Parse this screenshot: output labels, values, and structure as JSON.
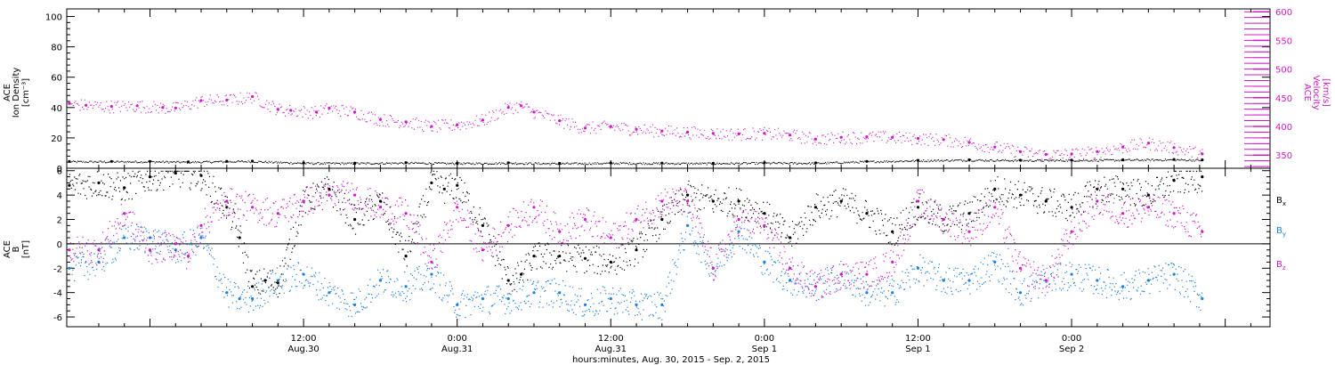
{
  "footer": {
    "time_axis_label": "hours:minutes, Aug. 30, 2015 - Sep. 2, 2015"
  },
  "chart_data": [
    {
      "type": "scatter",
      "panel": "top",
      "ylabel": [
        "ACE",
        "Ion Density",
        "[cm⁻³]"
      ],
      "ylabel2": [
        "ACE",
        "Velocity",
        "[km/s]"
      ],
      "ylim": [
        0,
        105
      ],
      "yticks": [
        "0",
        "20",
        "40",
        "60",
        "80",
        "100"
      ],
      "ylim2": [
        327,
        605
      ],
      "yticks2": [
        "350",
        "400",
        "450",
        "500",
        "550",
        "600"
      ],
      "xlim_hours": [
        -6.5,
        87.5
      ],
      "series": [
        {
          "axis": "left",
          "color": "#000000",
          "x": [
            -6.3,
            -3,
            0,
            3,
            6,
            8,
            12,
            16,
            20,
            24,
            28,
            32,
            36,
            40,
            44,
            48,
            52,
            56,
            60,
            64,
            68,
            72,
            76,
            80,
            82.2
          ],
          "y": [
            4.5,
            4.5,
            4.5,
            4.2,
            4.6,
            4.7,
            3.5,
            3.4,
            3.7,
            3.3,
            3.6,
            3.2,
            3.5,
            3.4,
            3.3,
            3.6,
            3.5,
            4.5,
            5.2,
            5.6,
            5.3,
            5.4,
            5.6,
            5.8,
            5.5
          ]
        },
        {
          "axis": "right",
          "color": "#cc1cc7",
          "x": [
            -6.3,
            -5,
            -3,
            -1,
            1,
            2,
            4,
            6,
            8,
            10,
            11,
            13,
            14,
            16,
            18,
            20,
            22,
            24,
            26,
            28,
            29,
            30,
            32,
            34,
            36,
            38,
            40,
            42,
            44,
            46,
            48,
            50,
            52,
            54,
            56,
            58,
            60,
            62,
            64,
            66,
            68,
            70,
            72,
            74,
            76,
            78,
            80,
            82.2
          ],
          "y": [
            440,
            437,
            435,
            436,
            433,
            432,
            445,
            446,
            452,
            430,
            428,
            425,
            432,
            425,
            412,
            408,
            400,
            403,
            411,
            433,
            436,
            425,
            410,
            397,
            400,
            395,
            392,
            390,
            388,
            387,
            388,
            385,
            378,
            381,
            382,
            381,
            379,
            377,
            372,
            364,
            356,
            351,
            352,
            356,
            364,
            371,
            363,
            352
          ]
        }
      ]
    },
    {
      "type": "scatter",
      "panel": "bottom",
      "ylabel": [
        "ACE",
        "B",
        "[nT]"
      ],
      "ylim": [
        -6.8,
        6.2
      ],
      "yticks": [
        "-6",
        "-4",
        "-2",
        "0",
        "2",
        "4",
        "6"
      ],
      "xlim_hours": [
        -6.5,
        87.5
      ],
      "series": [
        {
          "name": "B",
          "subscript": "x",
          "color": "#000000",
          "x": [
            -6.3,
            -4,
            -2,
            0,
            2,
            4,
            6,
            7,
            8,
            9,
            10,
            12,
            14,
            16,
            18,
            20,
            22,
            23,
            24,
            26,
            28,
            29,
            30,
            32,
            34,
            36,
            38,
            40,
            42,
            44,
            46,
            48,
            50,
            52,
            54,
            56,
            58,
            60,
            62,
            64,
            66,
            68,
            70,
            72,
            74,
            76,
            78,
            80,
            82.2
          ],
          "y": [
            4.8,
            5.0,
            4.6,
            5.5,
            5.8,
            5.6,
            3.0,
            0.5,
            -3.5,
            -3.0,
            -3.2,
            3.5,
            4.5,
            2.0,
            3.5,
            -1.0,
            5.0,
            4.5,
            4.8,
            1.5,
            -3.0,
            -2.5,
            -1.0,
            -1.0,
            -1.2,
            -1.5,
            -0.5,
            2.0,
            4.0,
            3.5,
            3.5,
            2.5,
            0.5,
            3.0,
            3.5,
            2.5,
            1.0,
            3.0,
            2.0,
            2.5,
            4.5,
            4.0,
            3.5,
            3.0,
            4.5,
            4.5,
            4.0,
            5.2,
            5.5
          ]
        },
        {
          "name": "B",
          "subscript": "y",
          "color": "#1e7fd9",
          "x": [
            -6.3,
            -4,
            -2,
            0,
            2,
            4,
            6,
            7,
            8,
            10,
            12,
            14,
            16,
            18,
            20,
            22,
            24,
            26,
            28,
            30,
            32,
            34,
            36,
            38,
            40,
            42,
            44,
            46,
            48,
            50,
            52,
            54,
            56,
            58,
            60,
            62,
            64,
            66,
            68,
            70,
            72,
            74,
            76,
            78,
            80,
            82.2
          ],
          "y": [
            -2.0,
            -1.5,
            0.5,
            0.5,
            -0.5,
            0.5,
            -4.0,
            -4.5,
            -4.5,
            -3.0,
            -2.5,
            -4.0,
            -5.0,
            -3.0,
            -3.5,
            -2.5,
            -5.0,
            -4.5,
            -4.5,
            -4.0,
            -4.0,
            -5.0,
            -4.5,
            -5.0,
            -5.0,
            1.5,
            -2.0,
            1.0,
            -1.5,
            -3.0,
            -3.5,
            -2.5,
            -4.0,
            -4.0,
            -2.0,
            -3.0,
            -3.0,
            -1.5,
            -4.0,
            -3.0,
            -2.5,
            -3.0,
            -3.5,
            -3.0,
            -2.5,
            -4.5
          ]
        },
        {
          "name": "B",
          "subscript": "z",
          "color": "#cc1cc7",
          "x": [
            -6.3,
            -4,
            -2,
            0,
            2,
            3,
            4,
            6,
            8,
            10,
            12,
            14,
            16,
            18,
            20,
            22,
            24,
            26,
            28,
            30,
            32,
            34,
            36,
            38,
            40,
            42,
            44,
            46,
            48,
            50,
            52,
            54,
            56,
            58,
            60,
            62,
            64,
            66,
            68,
            70,
            72,
            74,
            76,
            78,
            80,
            82.2
          ],
          "y": [
            -0.5,
            -0.5,
            2.5,
            -0.5,
            0,
            -1.0,
            1.5,
            3.5,
            3.0,
            2.5,
            3.5,
            4.0,
            4.0,
            3.0,
            2.5,
            -1.5,
            3.0,
            -0.5,
            1.5,
            3.0,
            1.0,
            2.0,
            0.5,
            2.0,
            3.5,
            3.5,
            -2.0,
            2.0,
            1.5,
            -2.0,
            -3.5,
            -2.5,
            -2.5,
            -1.5,
            3.5,
            2.0,
            1.0,
            3.0,
            -2.0,
            -3.0,
            1.0,
            3.5,
            2.5,
            3.0,
            2.5,
            1.0
          ]
        }
      ]
    }
  ],
  "xaxis": {
    "ticks": [
      {
        "hours": 12,
        "time": "12:00",
        "date": "Aug.30"
      },
      {
        "hours": 24,
        "time": "0:00",
        "date": "Aug.31"
      },
      {
        "hours": 36,
        "time": "12:00",
        "date": "Aug.31"
      },
      {
        "hours": 48,
        "time": "0:00",
        "date": "Sep 1"
      },
      {
        "hours": 60,
        "time": "12:00",
        "date": "Sep 1"
      },
      {
        "hours": 72,
        "time": "0:00",
        "date": "Sep 2"
      }
    ]
  }
}
